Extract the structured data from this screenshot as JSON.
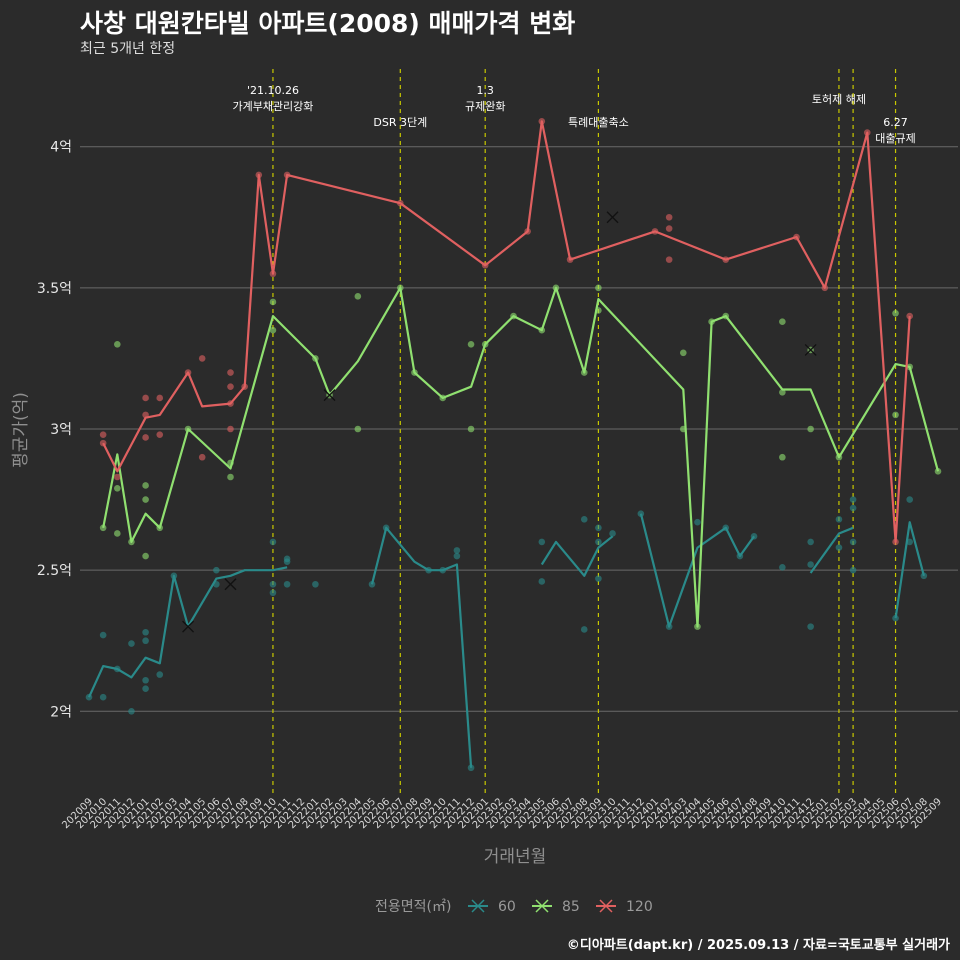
{
  "title": "사창 대원칸타빌 아파트(2008) 매매가격 변화",
  "subtitle": "최근 5개년 한정",
  "caption": "©디아파트(dapt.kr) / 2025.09.13 / 자료=국토교통부 실거래가",
  "chart_data": {
    "type": "line",
    "xlabel": "거래년월",
    "ylabel": "평균가(억)",
    "ylim": [
      1.7,
      4.3
    ],
    "yticks": [
      2,
      2.5,
      3,
      3.5,
      4
    ],
    "ytick_labels": [
      "2억",
      "2.5억",
      "3억",
      "3.5억",
      "4억"
    ],
    "x": [
      "202009",
      "202010",
      "202011",
      "202012",
      "202101",
      "202102",
      "202103",
      "202104",
      "202105",
      "202106",
      "202107",
      "202108",
      "202109",
      "202110",
      "202111",
      "202112",
      "202201",
      "202202",
      "202203",
      "202204",
      "202205",
      "202206",
      "202207",
      "202208",
      "202209",
      "202210",
      "202211",
      "202212",
      "202301",
      "202302",
      "202303",
      "202304",
      "202305",
      "202306",
      "202307",
      "202308",
      "202309",
      "202310",
      "202311",
      "202312",
      "202401",
      "202402",
      "202403",
      "202404",
      "202405",
      "202406",
      "202407",
      "202408",
      "202409",
      "202410",
      "202411",
      "202412",
      "202501",
      "202502",
      "202503",
      "202504",
      "202505",
      "202506",
      "202507",
      "202508",
      "202509"
    ],
    "legend": {
      "title": "전용면적(㎡)",
      "position": "bottom"
    },
    "grid": true,
    "series": [
      {
        "name": "60",
        "color": "#2a8a8a",
        "line": [
          [
            0,
            2.05
          ],
          [
            1,
            2.16
          ],
          [
            2,
            2.15
          ],
          [
            3,
            2.12
          ],
          [
            4,
            2.19
          ],
          [
            5,
            2.17
          ],
          [
            6,
            2.48
          ],
          [
            7,
            2.3
          ],
          [
            9,
            2.47
          ],
          [
            10,
            2.48
          ],
          [
            11,
            2.5
          ],
          [
            12,
            2.5
          ],
          [
            13,
            2.5
          ],
          [
            14,
            2.51
          ],
          null,
          [
            20,
            2.45
          ],
          [
            21,
            2.65
          ],
          [
            23,
            2.53
          ],
          [
            24,
            2.5
          ],
          [
            25,
            2.5
          ],
          [
            26,
            2.52
          ],
          [
            27,
            1.8
          ],
          null,
          [
            32,
            2.52
          ],
          [
            33,
            2.6
          ],
          [
            35,
            2.48
          ],
          [
            36,
            2.58
          ],
          [
            37,
            2.62
          ],
          null,
          [
            39,
            2.7
          ],
          [
            41,
            2.3
          ],
          [
            43,
            2.58
          ],
          [
            45,
            2.65
          ],
          [
            46,
            2.55
          ],
          [
            47,
            2.62
          ],
          null,
          [
            51,
            2.49
          ],
          [
            53,
            2.63
          ],
          [
            54,
            2.65
          ],
          null,
          [
            57,
            2.33
          ],
          [
            58,
            2.67
          ],
          [
            59,
            2.48
          ]
        ],
        "points": [
          [
            0,
            2.05
          ],
          [
            1,
            2.05
          ],
          [
            1,
            2.27
          ],
          [
            2,
            2.15
          ],
          [
            3,
            2.0
          ],
          [
            3,
            2.24
          ],
          [
            4,
            2.28
          ],
          [
            4,
            2.25
          ],
          [
            4,
            2.11
          ],
          [
            4,
            2.08
          ],
          [
            5,
            2.13
          ],
          [
            6,
            2.48
          ],
          [
            9,
            2.45
          ],
          [
            9,
            2.5
          ],
          [
            13,
            2.6
          ],
          [
            13,
            2.45
          ],
          [
            13,
            2.42
          ],
          [
            14,
            2.53
          ],
          [
            14,
            2.54
          ],
          [
            14,
            2.45
          ],
          [
            16,
            2.45
          ],
          [
            20,
            2.45
          ],
          [
            21,
            2.65
          ],
          [
            24,
            2.5
          ],
          [
            25,
            2.5
          ],
          [
            26,
            2.57
          ],
          [
            26,
            2.55
          ],
          [
            27,
            1.8
          ],
          [
            32,
            2.6
          ],
          [
            32,
            2.46
          ],
          [
            35,
            2.68
          ],
          [
            35,
            2.29
          ],
          [
            36,
            2.65
          ],
          [
            36,
            2.6
          ],
          [
            36,
            2.47
          ],
          [
            37,
            2.63
          ],
          [
            39,
            2.7
          ],
          [
            41,
            2.3
          ],
          [
            43,
            2.67
          ],
          [
            45,
            2.65
          ],
          [
            46,
            2.55
          ],
          [
            47,
            2.62
          ],
          [
            49,
            2.51
          ],
          [
            51,
            2.6
          ],
          [
            51,
            2.3
          ],
          [
            51,
            2.52
          ],
          [
            53,
            2.58
          ],
          [
            53,
            2.68
          ],
          [
            54,
            2.75
          ],
          [
            54,
            2.72
          ],
          [
            54,
            2.6
          ],
          [
            54,
            2.5
          ],
          [
            57,
            2.33
          ],
          [
            58,
            2.75
          ],
          [
            58,
            2.6
          ],
          [
            59,
            2.48
          ]
        ],
        "crosses": [
          [
            7,
            2.3
          ],
          [
            10,
            2.45
          ]
        ]
      },
      {
        "name": "85",
        "color": "#90e070",
        "line": [
          [
            1,
            2.65
          ],
          [
            2,
            2.91
          ],
          [
            3,
            2.6
          ],
          [
            4,
            2.7
          ],
          [
            5,
            2.65
          ],
          [
            7,
            3.0
          ],
          [
            10,
            2.86
          ],
          [
            13,
            3.4
          ],
          [
            16,
            3.25
          ],
          [
            17,
            3.12
          ],
          [
            19,
            3.24
          ],
          [
            22,
            3.5
          ],
          [
            23,
            3.2
          ],
          [
            25,
            3.11
          ],
          [
            27,
            3.15
          ],
          [
            28,
            3.3
          ],
          [
            30,
            3.4
          ],
          [
            32,
            3.35
          ],
          [
            33,
            3.5
          ],
          [
            35,
            3.2
          ],
          [
            36,
            3.46
          ],
          [
            42,
            3.14
          ],
          [
            43,
            2.3
          ],
          [
            44,
            3.38
          ],
          [
            45,
            3.4
          ],
          [
            49,
            3.14
          ],
          [
            51,
            3.14
          ],
          [
            53,
            2.9
          ],
          [
            57,
            3.23
          ],
          [
            58,
            3.22
          ],
          [
            60,
            2.85
          ]
        ],
        "points": [
          [
            1,
            2.65
          ],
          [
            2,
            3.3
          ],
          [
            2,
            2.79
          ],
          [
            2,
            2.63
          ],
          [
            3,
            2.6
          ],
          [
            4,
            2.8
          ],
          [
            4,
            2.75
          ],
          [
            4,
            2.55
          ],
          [
            5,
            2.65
          ],
          [
            7,
            3.0
          ],
          [
            10,
            2.88
          ],
          [
            10,
            2.83
          ],
          [
            13,
            3.45
          ],
          [
            13,
            3.35
          ],
          [
            16,
            3.25
          ],
          [
            17,
            3.12
          ],
          [
            19,
            3.47
          ],
          [
            19,
            3.0
          ],
          [
            22,
            3.5
          ],
          [
            23,
            3.2
          ],
          [
            25,
            3.11
          ],
          [
            27,
            3.3
          ],
          [
            27,
            3.0
          ],
          [
            28,
            3.3
          ],
          [
            30,
            3.4
          ],
          [
            32,
            3.35
          ],
          [
            33,
            3.5
          ],
          [
            35,
            3.2
          ],
          [
            36,
            3.5
          ],
          [
            36,
            3.42
          ],
          [
            42,
            3.27
          ],
          [
            42,
            3.0
          ],
          [
            43,
            2.3
          ],
          [
            44,
            3.38
          ],
          [
            45,
            3.4
          ],
          [
            49,
            3.38
          ],
          [
            49,
            3.13
          ],
          [
            49,
            2.9
          ],
          [
            51,
            3.28
          ],
          [
            51,
            3.0
          ],
          [
            53,
            2.9
          ],
          [
            57,
            3.41
          ],
          [
            57,
            3.05
          ],
          [
            58,
            3.22
          ],
          [
            60,
            2.85
          ]
        ],
        "crosses": [
          [
            51,
            3.28
          ]
        ]
      },
      {
        "name": "120",
        "color": "#e06060",
        "line": [
          [
            1,
            2.95
          ],
          [
            2,
            2.85
          ],
          [
            4,
            3.04
          ],
          [
            5,
            3.05
          ],
          [
            7,
            3.2
          ],
          [
            8,
            3.08
          ],
          [
            10,
            3.09
          ],
          [
            11,
            3.15
          ],
          [
            12,
            3.9
          ],
          [
            13,
            3.55
          ],
          [
            14,
            3.9
          ],
          [
            22,
            3.8
          ],
          [
            28,
            3.58
          ],
          [
            31,
            3.7
          ],
          [
            32,
            4.09
          ],
          [
            34,
            3.6
          ],
          [
            40,
            3.7
          ],
          [
            45,
            3.6
          ],
          [
            50,
            3.68
          ],
          [
            52,
            3.5
          ],
          [
            55,
            4.05
          ],
          [
            57,
            2.6
          ],
          [
            58,
            3.4
          ]
        ],
        "points": [
          [
            1,
            2.98
          ],
          [
            1,
            2.95
          ],
          [
            2,
            2.83
          ],
          [
            4,
            3.11
          ],
          [
            4,
            3.05
          ],
          [
            4,
            2.97
          ],
          [
            5,
            3.11
          ],
          [
            5,
            2.98
          ],
          [
            7,
            3.2
          ],
          [
            8,
            3.25
          ],
          [
            8,
            2.9
          ],
          [
            10,
            3.2
          ],
          [
            10,
            3.15
          ],
          [
            10,
            3.09
          ],
          [
            10,
            3.0
          ],
          [
            11,
            3.15
          ],
          [
            12,
            3.9
          ],
          [
            13,
            3.55
          ],
          [
            14,
            3.9
          ],
          [
            22,
            3.8
          ],
          [
            28,
            3.58
          ],
          [
            31,
            3.7
          ],
          [
            32,
            4.09
          ],
          [
            34,
            3.6
          ],
          [
            40,
            3.7
          ],
          [
            41,
            3.75
          ],
          [
            41,
            3.71
          ],
          [
            41,
            3.6
          ],
          [
            45,
            3.6
          ],
          [
            50,
            3.68
          ],
          [
            52,
            3.5
          ],
          [
            55,
            4.05
          ],
          [
            57,
            2.6
          ],
          [
            58,
            3.4
          ]
        ],
        "crosses": [
          [
            17,
            3.12
          ],
          [
            37,
            3.75
          ]
        ]
      }
    ],
    "events": [
      {
        "x": 13,
        "lines": [
          "'21.10.26",
          "가계부채관리강화"
        ],
        "level": 1
      },
      {
        "x": 22,
        "lines": [
          "DSR 3단계"
        ],
        "level": 3
      },
      {
        "x": 28,
        "lines": [
          "1.3",
          "규제완화"
        ],
        "level": 1
      },
      {
        "x": 36,
        "lines": [
          "특례대출축소"
        ],
        "level": 3
      },
      {
        "x": 53,
        "lines": [
          "토허제 해제"
        ],
        "level": 2
      },
      {
        "x": 54,
        "lines": [],
        "level": 0
      },
      {
        "x": 57,
        "lines": [
          "6.27",
          "대출규제"
        ],
        "level": 3
      }
    ]
  }
}
